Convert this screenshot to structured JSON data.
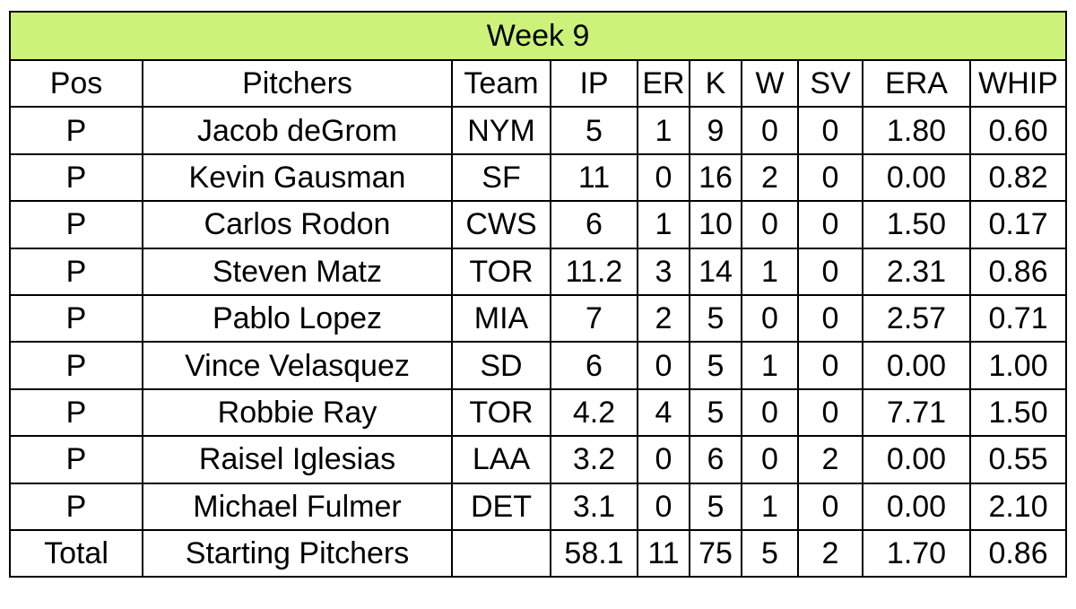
{
  "title": "Week 9",
  "headers": [
    "Pos",
    "Pitchers",
    "Team",
    "IP",
    "ER",
    "K",
    "W",
    "SV",
    "ERA",
    "WHIP"
  ],
  "rows": [
    [
      "P",
      "Jacob deGrom",
      "NYM",
      "5",
      "1",
      "9",
      "0",
      "0",
      "1.80",
      "0.60"
    ],
    [
      "P",
      "Kevin Gausman",
      "SF",
      "11",
      "0",
      "16",
      "2",
      "0",
      "0.00",
      "0.82"
    ],
    [
      "P",
      "Carlos Rodon",
      "CWS",
      "6",
      "1",
      "10",
      "0",
      "0",
      "1.50",
      "0.17"
    ],
    [
      "P",
      "Steven Matz",
      "TOR",
      "11.2",
      "3",
      "14",
      "1",
      "0",
      "2.31",
      "0.86"
    ],
    [
      "P",
      "Pablo Lopez",
      "MIA",
      "7",
      "2",
      "5",
      "0",
      "0",
      "2.57",
      "0.71"
    ],
    [
      "P",
      "Vince Velasquez",
      "SD",
      "6",
      "0",
      "5",
      "1",
      "0",
      "0.00",
      "1.00"
    ],
    [
      "P",
      "Robbie Ray",
      "TOR",
      "4.2",
      "4",
      "5",
      "0",
      "0",
      "7.71",
      "1.50"
    ],
    [
      "P",
      "Raisel Iglesias",
      "LAA",
      "3.2",
      "0",
      "6",
      "0",
      "2",
      "0.00",
      "0.55"
    ],
    [
      "P",
      "Michael Fulmer",
      "DET",
      "3.1",
      "0",
      "5",
      "1",
      "0",
      "0.00",
      "2.10"
    ]
  ],
  "total": [
    "Total",
    "Starting Pitchers",
    "",
    "58.1",
    "11",
    "75",
    "5",
    "2",
    "1.70",
    "0.86"
  ],
  "colors": {
    "title_bg": "#ccf27a",
    "border": "#000000"
  }
}
